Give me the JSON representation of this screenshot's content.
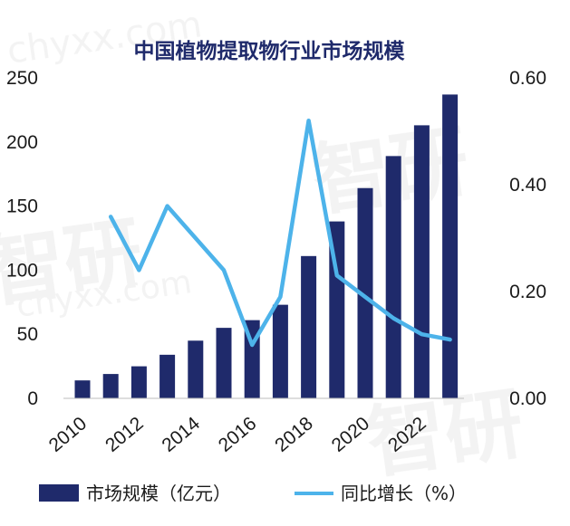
{
  "chart_data": {
    "type": "bar",
    "title": "中国植物提取物行业市场规模",
    "categories": [
      "2010",
      "2011",
      "2012",
      "2013",
      "2014",
      "2015",
      "2016",
      "2017",
      "2018",
      "2019",
      "2020",
      "2021",
      "2022",
      "2023"
    ],
    "x_tick_labels": [
      "2010",
      "2012",
      "2014",
      "2016",
      "2018",
      "2020",
      "2022"
    ],
    "series": [
      {
        "name": "市场规模（亿元）",
        "type": "bar",
        "axis": "left",
        "values": [
          14,
          19,
          25,
          34,
          45,
          55,
          61,
          73,
          111,
          138,
          164,
          189,
          213,
          237
        ]
      },
      {
        "name": "同比增长（%）",
        "type": "line",
        "axis": "right",
        "values": [
          null,
          0.34,
          0.24,
          0.36,
          0.3,
          0.24,
          0.1,
          0.19,
          0.52,
          0.23,
          0.19,
          0.15,
          0.12,
          0.11
        ]
      }
    ],
    "y_left": {
      "min": 0,
      "max": 250,
      "ticks": [
        "0",
        "50",
        "100",
        "150",
        "200",
        "250"
      ]
    },
    "y_right": {
      "min": 0,
      "max": 0.6,
      "ticks": [
        "0.00",
        "0.20",
        "0.40",
        "0.60"
      ]
    },
    "grid": false,
    "legend_position": "bottom",
    "colors": {
      "bar": "#1f2a6b",
      "line": "#4db3ea",
      "title": "#1f2a6b",
      "text": "#1a1a1a"
    }
  },
  "watermark": {
    "logo_text": "智研",
    "url_text": "chyxx.com"
  }
}
